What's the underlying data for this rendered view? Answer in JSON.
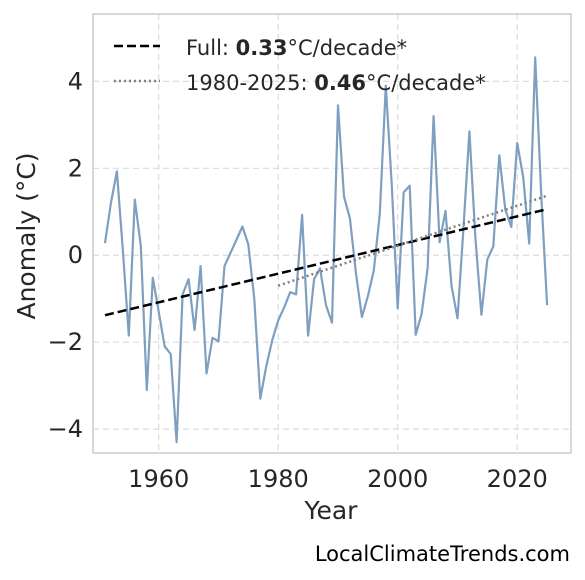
{
  "chart_data": {
    "type": "line",
    "xlabel": "Year",
    "ylabel": "Anomaly (°C)",
    "xlim": [
      1949,
      2029
    ],
    "ylim": [
      -4.55,
      5.55
    ],
    "xticks": [
      1960,
      1980,
      2000,
      2020
    ],
    "yticks": [
      -4,
      -2,
      0,
      2,
      4
    ],
    "ytick_labels": [
      "−4",
      "−2",
      "0",
      "2",
      "4"
    ],
    "grid": true,
    "legend_position": "top-left",
    "series": [
      {
        "style": "solid",
        "color": "#7f9fc0",
        "x": [
          1951,
          1952,
          1953,
          1954,
          1955,
          1956,
          1957,
          1958,
          1959,
          1960,
          1961,
          1962,
          1963,
          1964,
          1965,
          1966,
          1967,
          1968,
          1969,
          1970,
          1971,
          1972,
          1973,
          1974,
          1975,
          1976,
          1977,
          1978,
          1979,
          1980,
          1981,
          1982,
          1983,
          1984,
          1985,
          1986,
          1987,
          1988,
          1989,
          1990,
          1991,
          1992,
          1993,
          1994,
          1995,
          1996,
          1997,
          1998,
          1999,
          2000,
          2001,
          2002,
          2003,
          2004,
          2005,
          2006,
          2007,
          2008,
          2009,
          2010,
          2011,
          2012,
          2013,
          2014,
          2015,
          2016,
          2017,
          2018,
          2019,
          2020,
          2021,
          2022,
          2023,
          2024,
          2025
        ],
        "y": [
          0.28,
          1.2,
          1.93,
          0.1,
          -1.85,
          1.28,
          0.22,
          -3.1,
          -0.52,
          -1.3,
          -2.1,
          -2.27,
          -4.3,
          -0.9,
          -0.55,
          -1.72,
          -0.25,
          -2.72,
          -1.9,
          -1.98,
          -0.25,
          0.05,
          0.35,
          0.66,
          0.25,
          -1.0,
          -3.3,
          -2.55,
          -1.95,
          -1.5,
          -1.2,
          -0.85,
          -0.9,
          0.93,
          -1.85,
          -0.55,
          -0.3,
          -1.15,
          -1.55,
          3.45,
          1.35,
          0.85,
          -0.4,
          -1.42,
          -0.95,
          -0.35,
          0.95,
          3.9,
          1.6,
          -1.22,
          1.45,
          1.6,
          -1.83,
          -1.35,
          -0.3,
          3.2,
          0.3,
          1.02,
          -0.7,
          -1.45,
          0.6,
          2.85,
          0.4,
          -1.37,
          -0.1,
          0.2,
          2.3,
          1.05,
          0.65,
          2.58,
          1.8,
          0.27,
          4.55,
          1.45,
          -1.15
        ]
      },
      {
        "name": "Full",
        "style": "dashed",
        "color": "#000000",
        "x": [
          1951,
          2025
        ],
        "y": [
          -1.38,
          1.06
        ]
      },
      {
        "name": "1980-2025",
        "style": "dotted",
        "color": "#808080",
        "x": [
          1980,
          2025
        ],
        "y": [
          -0.7,
          1.37
        ]
      }
    ],
    "legend": [
      {
        "prefix": "Full: ",
        "value": "0.33",
        "suffix": "°C/decade*",
        "style": "dashed",
        "color": "#000000"
      },
      {
        "prefix": "1980-2025: ",
        "value": "0.46",
        "suffix": "°C/decade*",
        "style": "dotted",
        "color": "#808080"
      }
    ]
  },
  "credit": "LocalClimateTrends.com"
}
